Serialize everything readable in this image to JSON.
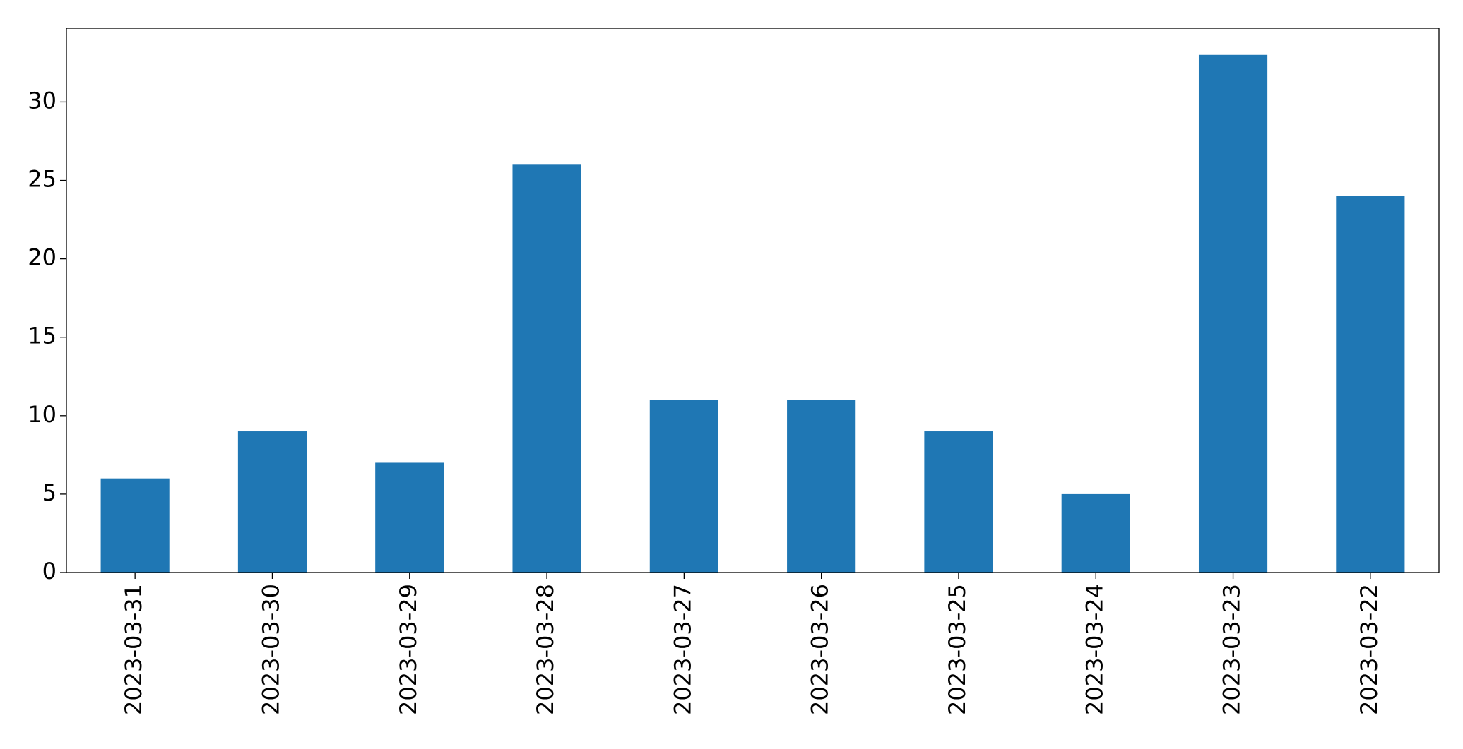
{
  "chart_data": {
    "type": "bar",
    "categories": [
      "2023-03-31",
      "2023-03-30",
      "2023-03-29",
      "2023-03-28",
      "2023-03-27",
      "2023-03-26",
      "2023-03-25",
      "2023-03-24",
      "2023-03-23",
      "2023-03-22"
    ],
    "values": [
      6,
      9,
      7,
      26,
      11,
      11,
      9,
      5,
      33,
      24
    ],
    "color": "#1f77b4",
    "ylim": [
      0,
      34.7
    ],
    "yticks": [
      0,
      5,
      10,
      15,
      20,
      25,
      30
    ],
    "grid": false
  }
}
